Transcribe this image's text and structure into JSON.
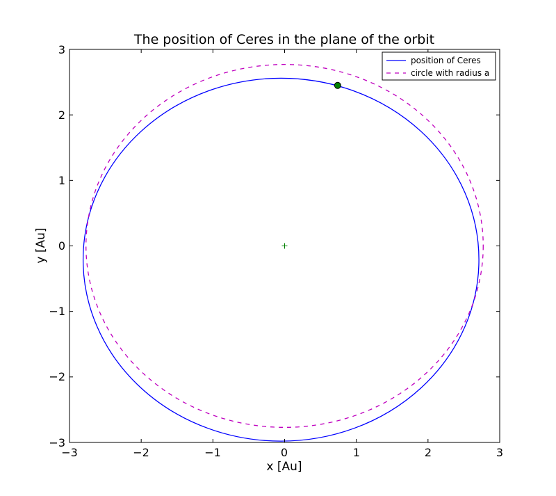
{
  "chart_data": {
    "type": "line",
    "title": "The position of Ceres in the plane of the orbit",
    "xlabel": "x [Au]",
    "ylabel": "y [Au]",
    "xlim": [
      -3,
      3
    ],
    "ylim": [
      -3,
      3
    ],
    "xticks": [
      "−3",
      "−2",
      "−1",
      "0",
      "1",
      "2",
      "3"
    ],
    "yticks": [
      "3",
      "2",
      "1",
      "0",
      "−1",
      "−2",
      "−3"
    ],
    "grid": false,
    "legend_position": "top-right",
    "series": [
      {
        "name": "position of Ceres",
        "style": "solid",
        "color": "#0000ff",
        "shape": "ellipse",
        "center": [
          -0.05,
          -0.21
        ],
        "semi_axes": [
          2.76,
          2.77
        ]
      },
      {
        "name": "circle with radius a",
        "style": "dashed",
        "color": "#bf00bf",
        "shape": "circle",
        "center": [
          0.0,
          0.0
        ],
        "radius": 2.77
      }
    ],
    "markers": [
      {
        "label": "current position",
        "x": 0.74,
        "y": 2.45,
        "color": "#008000",
        "shape": "circle"
      },
      {
        "label": "origin",
        "x": 0.0,
        "y": 0.0,
        "color": "#008000",
        "shape": "plus"
      }
    ]
  }
}
